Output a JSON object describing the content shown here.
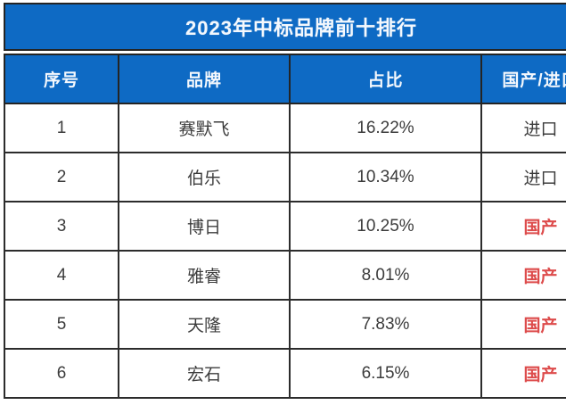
{
  "chart_data": {
    "type": "table",
    "title": "2023年中标品牌前十排行",
    "columns": [
      "序号",
      "品牌",
      "占比",
      "国产/进口"
    ],
    "rows": [
      {
        "rank": "1",
        "brand": "赛默飞",
        "share": "16.22%",
        "origin": "进口",
        "origin_type": "import"
      },
      {
        "rank": "2",
        "brand": "伯乐",
        "share": "10.34%",
        "origin": "进口",
        "origin_type": "import"
      },
      {
        "rank": "3",
        "brand": "博日",
        "share": "10.25%",
        "origin": "国产",
        "origin_type": "domestic"
      },
      {
        "rank": "4",
        "brand": "雅睿",
        "share": "8.01%",
        "origin": "国产",
        "origin_type": "domestic"
      },
      {
        "rank": "5",
        "brand": "天隆",
        "share": "7.83%",
        "origin": "国产",
        "origin_type": "domestic"
      },
      {
        "rank": "6",
        "brand": "宏石",
        "share": "6.15%",
        "origin": "国产",
        "origin_type": "domestic"
      }
    ],
    "layout_hints": {
      "header_style": "blue bar with white bold text",
      "domestic_rows_highlighted_red": true,
      "last_column_clipped_at_right_edge": true
    }
  },
  "colors": {
    "header_blue": "#0e6ac4",
    "header_text": "#f4f8fd",
    "body_text": "#3c3c3c",
    "domestic_red": "#dd4b4b",
    "border_dark": "#242424",
    "background": "#ffffff"
  }
}
